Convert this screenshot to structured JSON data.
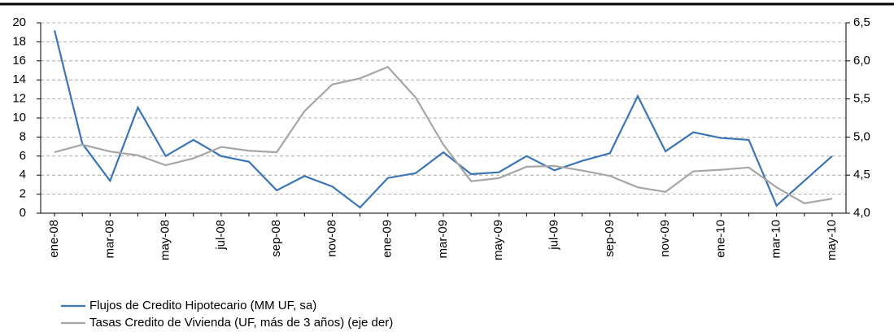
{
  "chart_data": {
    "type": "line",
    "categories": [
      "ene-08",
      null,
      "mar-08",
      null,
      "may-08",
      null,
      "jul-08",
      null,
      "sep-08",
      null,
      "nov-08",
      null,
      "ene-09",
      null,
      "mar-09",
      null,
      "may-09",
      null,
      "jul-09",
      null,
      "sep-09",
      null,
      "nov-09",
      null,
      "ene-10",
      null,
      "mar-10",
      null,
      "may-10"
    ],
    "series": [
      {
        "name": "Flujos de Credito Hipotecario (MM UF, sa)",
        "color": "#3b75b5",
        "values": [
          19.2,
          7.3,
          3.4,
          11.1,
          6.0,
          7.7,
          6.0,
          5.4,
          2.4,
          3.9,
          2.8,
          0.6,
          3.7,
          4.2,
          6.4,
          4.1,
          4.3,
          6.0,
          4.5,
          5.5,
          6.3,
          12.3,
          6.5,
          8.5,
          7.9,
          7.7,
          0.8,
          3.4,
          6.0
        ]
      },
      {
        "name": "Tasas Credito de Vivienda (UF, más de 3 años) (eje der)",
        "color": "#a6a6a6",
        "axis": "y2",
        "values": [
          4.8,
          4.9,
          4.81,
          4.76,
          4.63,
          4.72,
          4.87,
          4.82,
          4.8,
          5.34,
          5.69,
          5.77,
          5.92,
          5.52,
          4.9,
          4.42,
          4.46,
          4.61,
          4.62,
          4.56,
          4.49,
          4.34,
          4.28,
          4.55,
          4.57,
          4.6,
          4.34,
          4.13,
          4.19
        ]
      }
    ],
    "ylim": [
      0,
      20
    ],
    "yticks": [
      0,
      2,
      4,
      6,
      8,
      10,
      12,
      14,
      16,
      18,
      20
    ],
    "y2lim": [
      4.0,
      6.5
    ],
    "y2ticks": [
      {
        "value": 4.0,
        "label": "4,0"
      },
      {
        "value": 4.5,
        "label": "4,5"
      },
      {
        "value": 5.0,
        "label": "5,0"
      },
      {
        "value": 5.5,
        "label": "5,5"
      },
      {
        "value": 6.0,
        "label": "6,0"
      },
      {
        "value": 6.5,
        "label": "6,5"
      }
    ],
    "grid": true,
    "legend": "bottom-left"
  }
}
